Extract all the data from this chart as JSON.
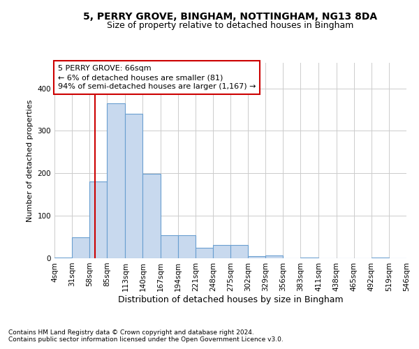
{
  "title1": "5, PERRY GROVE, BINGHAM, NOTTINGHAM, NG13 8DA",
  "title2": "Size of property relative to detached houses in Bingham",
  "xlabel": "Distribution of detached houses by size in Bingham",
  "ylabel": "Number of detached properties",
  "annotation_title": "5 PERRY GROVE: 66sqm",
  "annotation_line1": "← 6% of detached houses are smaller (81)",
  "annotation_line2": "94% of semi-detached houses are larger (1,167) →",
  "property_line_x": 66,
  "bins": [
    4,
    31,
    58,
    85,
    113,
    140,
    167,
    194,
    221,
    248,
    275,
    302,
    329,
    356,
    383,
    411,
    438,
    465,
    492,
    519,
    546
  ],
  "bar_values": [
    2,
    50,
    181,
    365,
    340,
    198,
    54,
    54,
    25,
    31,
    32,
    5,
    6,
    0,
    2,
    0,
    0,
    0,
    2,
    0
  ],
  "bar_color": "#c8d9ee",
  "bar_edge_color": "#6a9fd0",
  "grid_color": "#cccccc",
  "vline_color": "#cc0000",
  "annotation_box_color": "#cc0000",
  "background_color": "#ffffff",
  "footer1": "Contains HM Land Registry data © Crown copyright and database right 2024.",
  "footer2": "Contains public sector information licensed under the Open Government Licence v3.0.",
  "ylim": [
    0,
    460
  ],
  "title1_fontsize": 10,
  "title2_fontsize": 9,
  "ylabel_fontsize": 8,
  "xlabel_fontsize": 9,
  "tick_fontsize": 7.5,
  "annotation_fontsize": 8,
  "footer_fontsize": 6.5
}
